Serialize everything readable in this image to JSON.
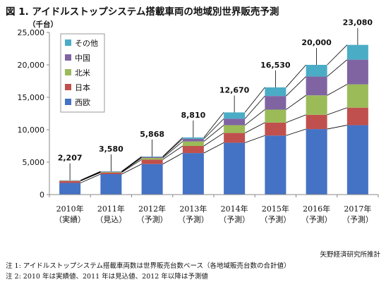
{
  "header": {
    "title": "図 1. アイドルストップシステム搭載車両の地域別世界販売予測",
    "unit": "（千台）"
  },
  "chart_data": {
    "type": "bar",
    "stacked": true,
    "categories": [
      "2010年",
      "2011年",
      "2012年",
      "2013年",
      "2014年",
      "2015年",
      "2016年",
      "2017年"
    ],
    "category_notes": [
      "（実績）",
      "（見込）",
      "（予測）",
      "（予測）",
      "（予測）",
      "（予測）",
      "（予測）",
      "（予測）"
    ],
    "series": [
      {
        "name": "西欧",
        "color": "#4472c4",
        "values": [
          1800,
          3150,
          4700,
          6400,
          8000,
          9100,
          10100,
          10700
        ]
      },
      {
        "name": "日本",
        "color": "#c0504d",
        "values": [
          300,
          250,
          700,
          1100,
          1500,
          2000,
          2200,
          2700
        ]
      },
      {
        "name": "北米",
        "color": "#9bbb59",
        "values": [
          50,
          80,
          250,
          700,
          1200,
          2000,
          3000,
          3600
        ]
      },
      {
        "name": "中国",
        "color": "#8064a2",
        "values": [
          30,
          50,
          150,
          400,
          1000,
          2100,
          2900,
          3800
        ]
      },
      {
        "name": "その他",
        "color": "#4bacc6",
        "values": [
          27,
          50,
          68,
          210,
          970,
          1330,
          1800,
          2280
        ]
      }
    ],
    "totals": [
      2207,
      3580,
      5868,
      8810,
      12670,
      16530,
      20000,
      23080
    ],
    "total_labels": [
      "2,207",
      "3,580",
      "5,868",
      "8,810",
      "12,670",
      "16,530",
      "20,000",
      "23,080"
    ],
    "ylim": [
      0,
      25000
    ],
    "yticks": [
      0,
      5000,
      10000,
      15000,
      20000,
      25000
    ],
    "ytick_labels": [
      "0",
      "5,000",
      "10,000",
      "15,000",
      "20,000",
      "25,000"
    ],
    "legend_position": "top-left",
    "grid": false
  },
  "footer": {
    "source": "矢野経済研究所推計",
    "note1": "注 1:  アイドルストップシステム搭載車両数は世界販売台数ベース（各地域販売台数の合計値）",
    "note2": "注 2: 2010 年は実績値、2011 年は見込値、2012 年以降は予測値"
  }
}
